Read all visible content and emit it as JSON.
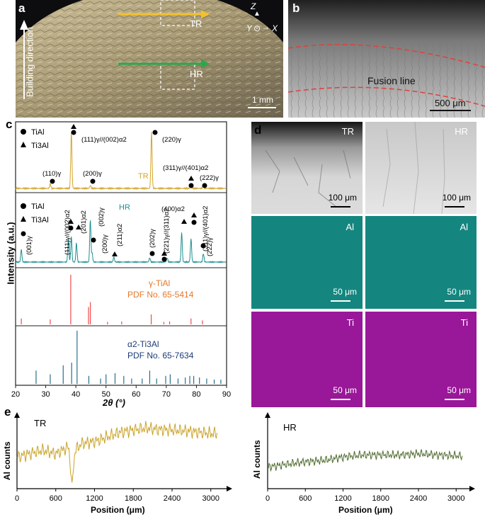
{
  "panel_a": {
    "label": "a",
    "building_direction": "Building direction",
    "axis_z": "Z",
    "axis_y": "Y",
    "axis_x": "X",
    "tr": "TR",
    "hr": "HR",
    "scale": "1 mm"
  },
  "panel_b": {
    "label": "b",
    "fusion_line": "Fusion line",
    "scale": "500 μm"
  },
  "panel_c": {
    "label": "c",
    "ylabel": "Intensity (a.u.)",
    "xlabel": "2θ (°)",
    "xticks": [
      "20",
      "30",
      "40",
      "50",
      "60",
      "70",
      "80",
      "90"
    ],
    "tr_legend": [
      "TiAl",
      "Ti3Al"
    ],
    "tr_name": "TR",
    "tr_peaks": [
      "(110)γ",
      "(111)γ//(002)α2",
      "(200)γ",
      "(220)γ",
      "(311)γ//(401)α2",
      "(222)γ"
    ],
    "hr_legend": [
      "TiAl",
      "Ti3Al"
    ],
    "hr_name": "HR",
    "hr_peaks": [
      "(001)γ",
      "(111)γ//(002)α2",
      "(201)α2",
      "(002)γ",
      "(200)γ",
      "(211)α2",
      "(202)γ",
      "(221)γ//(311)α2",
      "(400)α2",
      "(311)γ//(401)α2",
      "(222)γ"
    ],
    "ref_gamma": [
      "γ-TiAl",
      "PDF No. 65-5414"
    ],
    "ref_alpha": [
      "α2-Ti3Al",
      "PDF No. 65-7634"
    ]
  },
  "panel_d": {
    "label": "d",
    "tr": "TR",
    "hr": "HR",
    "al": "Al",
    "ti": "Ti",
    "scale_100": "100 μm",
    "scale_50": "50 μm",
    "colors": {
      "al": "#1a9a90",
      "ti": "#b21fb4"
    }
  },
  "panel_e": {
    "label": "e",
    "ylabel": "Al counts",
    "xlabel": "Position (μm)",
    "xticks": [
      "0",
      "600",
      "1200",
      "1800",
      "2400",
      "3000"
    ],
    "tr": "TR",
    "hr": "HR",
    "colors": {
      "tr": "#c9a227",
      "hr": "#4e6b2e"
    }
  },
  "chart_data": [
    {
      "type": "line",
      "title": "",
      "xlabel": "2θ (°)",
      "ylabel": "Intensity (a.u.)",
      "xlim": [
        20,
        90
      ],
      "series": [
        {
          "name": "TR",
          "x": [
            31.5,
            38.5,
            44.8,
            65.1,
            78.2,
            82.3
          ],
          "values": [
            0.08,
            1.0,
            0.05,
            1.0,
            0.06,
            0.07
          ]
        },
        {
          "name": "HR",
          "x": [
            21.9,
            37.5,
            38.5,
            40.2,
            44.8,
            45.4,
            52.6,
            64.5,
            70.3,
            75.1,
            78.2,
            82.3
          ],
          "values": [
            0.3,
            0.55,
            0.6,
            0.45,
            1.0,
            0.2,
            0.12,
            0.1,
            0.1,
            0.7,
            0.55,
            0.2
          ]
        },
        {
          "name": "γ-TiAl PDF No. 65-5414",
          "x": [
            21.9,
            31.5,
            38.3,
            44.2,
            44.8,
            50.5,
            55.2,
            65.0,
            69.2,
            71.1,
            78.2,
            82.0
          ],
          "values": [
            0.12,
            0.1,
            1.0,
            0.35,
            0.45,
            0.05,
            0.06,
            0.2,
            0.05,
            0.06,
            0.12,
            0.08
          ]
        },
        {
          "name": "α2-Ti3Al PDF No. 65-7634",
          "x": [
            26.8,
            31.5,
            35.8,
            38.6,
            40.4,
            44.3,
            48.2,
            50.0,
            53.0,
            55.9,
            58.5,
            62.0,
            64.5,
            66.8,
            69.8,
            71.3,
            73.9,
            76.3,
            77.8,
            79.1,
            81.0,
            83.4,
            85.9,
            88.1
          ],
          "values": [
            0.25,
            0.18,
            0.35,
            0.4,
            1.0,
            0.15,
            0.1,
            0.18,
            0.2,
            0.15,
            0.1,
            0.1,
            0.25,
            0.1,
            0.15,
            0.18,
            0.1,
            0.12,
            0.15,
            0.15,
            0.12,
            0.1,
            0.08,
            0.08
          ]
        }
      ]
    },
    {
      "type": "line",
      "title": "TR",
      "xlabel": "Position (μm)",
      "ylabel": "Al counts",
      "xlim": [
        0,
        3200
      ],
      "series": [
        {
          "name": "TR",
          "x": [
            0,
            200,
            400,
            600,
            800,
            850,
            900,
            1000,
            1200,
            1400,
            1600,
            1800,
            2000,
            2200,
            2400,
            2600,
            2800,
            3000,
            3100
          ],
          "values": [
            0.45,
            0.5,
            0.55,
            0.5,
            0.6,
            0.05,
            0.55,
            0.65,
            0.68,
            0.75,
            0.82,
            0.85,
            0.88,
            0.86,
            0.85,
            0.84,
            0.82,
            0.8,
            0.8
          ]
        }
      ]
    },
    {
      "type": "line",
      "title": "HR",
      "xlabel": "Position (μm)",
      "ylabel": "Al counts",
      "xlim": [
        0,
        3200
      ],
      "series": [
        {
          "name": "HR",
          "x": [
            0,
            300,
            600,
            900,
            1200,
            1500,
            1800,
            2100,
            2400,
            2700,
            3000,
            3100
          ],
          "values": [
            0.3,
            0.34,
            0.38,
            0.4,
            0.45,
            0.48,
            0.48,
            0.48,
            0.5,
            0.48,
            0.47,
            0.46
          ]
        }
      ]
    }
  ]
}
